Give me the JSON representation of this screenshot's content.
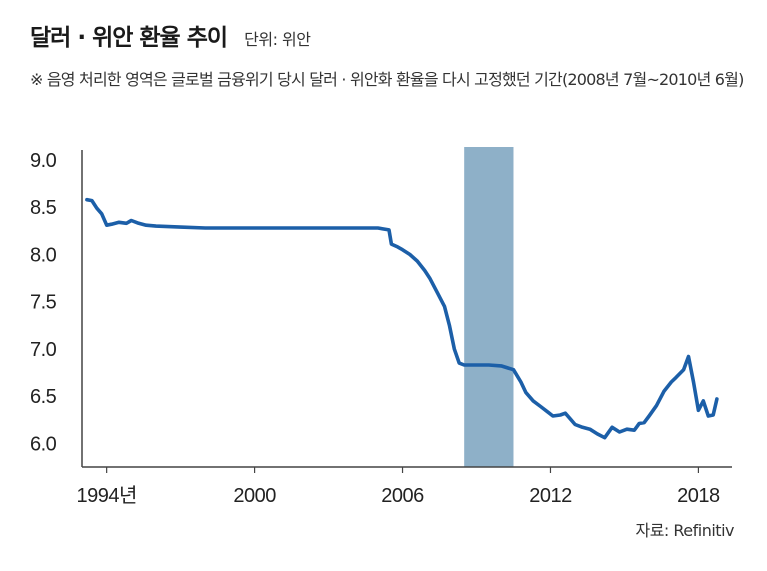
{
  "header": {
    "title": "달러 · 위안 환율 추이",
    "unit": "단위: 위안",
    "note": "※ 음영 처리한 영역은 글로벌 금융위기 당시 달러 · 위안화 환율을 다시 고정했던 기간(2008년 7월~2010년 6월)"
  },
  "source": "자료: Refinitiv",
  "colors": {
    "line": "#1c5fa8",
    "shade": "#8eb0c8",
    "axis": "#444444"
  },
  "chart_data": {
    "type": "line",
    "title": "달러 · 위안 환율 추이",
    "ylabel": "위안",
    "xlim": [
      1993.0,
      2019.2
    ],
    "ylim": [
      5.75,
      9.0
    ],
    "x_ticks": [
      1994,
      2000,
      2006,
      2012,
      2018
    ],
    "x_tick_labels": [
      "1994년",
      "2000",
      "2006",
      "2012",
      "2018"
    ],
    "y_ticks": [
      6.0,
      6.5,
      7.0,
      7.5,
      8.0,
      8.5,
      9.0
    ],
    "y_tick_labels": [
      "6.0",
      "6.5",
      "7.0",
      "7.5",
      "8.0",
      "8.5",
      "9.0"
    ],
    "grid": false,
    "shaded_region": {
      "start": 2008.5,
      "end": 2010.5,
      "label": "2008년 7월~2010년 6월"
    },
    "series": [
      {
        "x": [
          1993.2,
          1993.4,
          1993.6,
          1993.8,
          1994.0,
          1994.2,
          1994.5,
          1994.8,
          1995.0,
          1995.3,
          1995.6,
          1996.0,
          1997.0,
          1998.0,
          1999.0,
          2000.0,
          2001.0,
          2002.0,
          2003.0,
          2004.0,
          2005.0,
          2005.45,
          2005.55,
          2005.8,
          2006.0,
          2006.3,
          2006.6,
          2006.9,
          2007.1,
          2007.4,
          2007.7,
          2007.9,
          2008.1,
          2008.3,
          2008.5,
          2009.0,
          2009.5,
          2010.0,
          2010.5,
          2010.8,
          2011.0,
          2011.3,
          2011.6,
          2011.9,
          2012.1,
          2012.4,
          2012.6,
          2012.8,
          2013.0,
          2013.3,
          2013.6,
          2013.9,
          2014.2,
          2014.5,
          2014.8,
          2015.1,
          2015.4,
          2015.6,
          2015.8,
          2016.0,
          2016.3,
          2016.6,
          2016.9,
          2017.1,
          2017.4,
          2017.6,
          2017.8,
          2018.0,
          2018.2,
          2018.4,
          2018.6,
          2018.75
        ],
        "y": [
          8.58,
          8.57,
          8.49,
          8.43,
          8.31,
          8.32,
          8.34,
          8.33,
          8.36,
          8.33,
          8.31,
          8.3,
          8.29,
          8.28,
          8.28,
          8.28,
          8.28,
          8.28,
          8.28,
          8.28,
          8.28,
          8.26,
          8.11,
          8.08,
          8.05,
          8.0,
          7.93,
          7.83,
          7.75,
          7.6,
          7.45,
          7.25,
          7.0,
          6.85,
          6.83,
          6.83,
          6.83,
          6.82,
          6.78,
          6.65,
          6.54,
          6.45,
          6.39,
          6.33,
          6.29,
          6.3,
          6.32,
          6.26,
          6.2,
          6.17,
          6.15,
          6.1,
          6.06,
          6.17,
          6.12,
          6.15,
          6.14,
          6.21,
          6.22,
          6.29,
          6.4,
          6.55,
          6.65,
          6.7,
          6.78,
          6.92,
          6.65,
          6.35,
          6.45,
          6.29,
          6.3,
          6.47
        ]
      }
    ]
  }
}
